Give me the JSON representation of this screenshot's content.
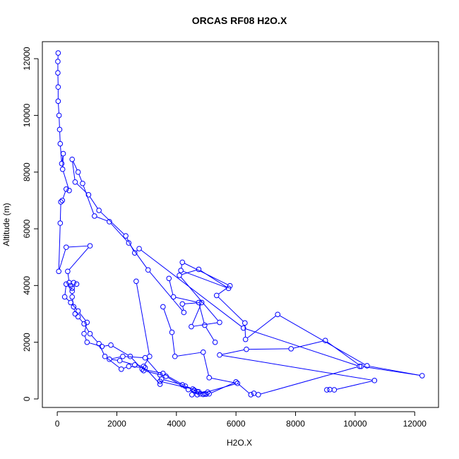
{
  "chart_data": {
    "type": "line",
    "title": "ORCAS RF08 H2O.X",
    "xlabel": "H2O.X",
    "ylabel": "Altitude (m)",
    "xlim": [
      -500,
      12800
    ],
    "ylim": [
      -300,
      12600
    ],
    "xticks": [
      0,
      2000,
      4000,
      6000,
      8000,
      10000,
      12000
    ],
    "yticks": [
      0,
      2000,
      4000,
      6000,
      8000,
      10000,
      12000
    ],
    "grid": false,
    "legend": "none",
    "color": "#0000ff",
    "series": [
      {
        "markers": "open-circle",
        "points": [
          [
            9050,
            320
          ],
          [
            9150,
            330
          ],
          [
            9300,
            320
          ],
          [
            10650,
            650
          ],
          [
            5450,
            1550
          ],
          [
            6350,
            1750
          ],
          [
            7850,
            1770
          ],
          [
            9000,
            2060
          ],
          [
            10200,
            1150
          ],
          [
            12250,
            820
          ],
          [
            10400,
            1170
          ],
          [
            7400,
            2980
          ],
          [
            6320,
            2100
          ],
          [
            6300,
            2680
          ],
          [
            5350,
            3650
          ],
          [
            5800,
            3990
          ],
          [
            4200,
            4820
          ],
          [
            4150,
            4530
          ],
          [
            5750,
            3900
          ],
          [
            4750,
            4570
          ],
          [
            4100,
            4360
          ],
          [
            5450,
            2700
          ],
          [
            4500,
            2550
          ],
          [
            4850,
            3400
          ],
          [
            4200,
            3350
          ],
          [
            4250,
            3050
          ],
          [
            3050,
            4550
          ],
          [
            2400,
            5500
          ],
          [
            1750,
            6250
          ],
          [
            1250,
            6450
          ],
          [
            850,
            7600
          ],
          [
            700,
            8000
          ],
          [
            500,
            8450
          ],
          [
            600,
            7650
          ],
          [
            1050,
            7200
          ],
          [
            1400,
            6650
          ],
          [
            2300,
            5750
          ],
          [
            2600,
            5150
          ],
          [
            2750,
            5300
          ],
          [
            6250,
            2500
          ],
          [
            10150,
            1150
          ],
          [
            6750,
            150
          ],
          [
            6600,
            200
          ],
          [
            6500,
            150
          ],
          [
            6000,
            600
          ],
          [
            5100,
            180
          ],
          [
            5000,
            170
          ],
          [
            4900,
            160
          ],
          [
            4800,
            180
          ],
          [
            4700,
            260
          ],
          [
            4600,
            310
          ],
          [
            4520,
            150
          ],
          [
            4550,
            350
          ],
          [
            3450,
            620
          ],
          [
            3450,
            520
          ],
          [
            2950,
            1100
          ],
          [
            2400,
            1150
          ],
          [
            2150,
            1050
          ],
          [
            1600,
            1500
          ],
          [
            1400,
            1950
          ],
          [
            1100,
            2300
          ],
          [
            900,
            2650
          ],
          [
            700,
            2900
          ],
          [
            600,
            3000
          ],
          [
            550,
            3250
          ],
          [
            500,
            3600
          ],
          [
            500,
            3800
          ],
          [
            450,
            4000
          ],
          [
            550,
            4100
          ],
          [
            400,
            4100
          ],
          [
            350,
            4500
          ],
          [
            1100,
            5400
          ],
          [
            300,
            5350
          ],
          [
            50,
            4500
          ],
          [
            100,
            6200
          ],
          [
            120,
            6950
          ],
          [
            170,
            7000
          ],
          [
            300,
            7400
          ],
          [
            400,
            7350
          ],
          [
            180,
            8100
          ],
          [
            200,
            8650
          ],
          [
            150,
            8300
          ],
          [
            100,
            9000
          ],
          [
            80,
            9500
          ],
          [
            60,
            10000
          ],
          [
            30,
            10500
          ],
          [
            30,
            11000
          ],
          [
            20,
            11500
          ],
          [
            20,
            11900
          ],
          [
            30,
            12200
          ]
        ]
      },
      {
        "markers": "open-circle",
        "points": [
          [
            2650,
            4150
          ],
          [
            3100,
            1500
          ],
          [
            2900,
            1150
          ],
          [
            2600,
            1200
          ],
          [
            2100,
            1350
          ],
          [
            1750,
            1400
          ],
          [
            2200,
            1500
          ],
          [
            2950,
            1450
          ],
          [
            3450,
            850
          ],
          [
            3500,
            700
          ],
          [
            4200,
            500
          ],
          [
            4600,
            300
          ],
          [
            4950,
            180
          ],
          [
            5050,
            240
          ],
          [
            4750,
            250
          ],
          [
            4300,
            450
          ],
          [
            3550,
            900
          ],
          [
            2850,
            1050
          ],
          [
            2450,
            1500
          ],
          [
            1800,
            1900
          ],
          [
            1500,
            1850
          ],
          [
            1000,
            2000
          ],
          [
            900,
            2300
          ],
          [
            1000,
            2700
          ],
          [
            700,
            3100
          ],
          [
            450,
            3400
          ],
          [
            250,
            3600
          ],
          [
            300,
            4050
          ],
          [
            500,
            3900
          ],
          [
            650,
            4050
          ]
        ]
      },
      {
        "markers": "open-circle",
        "points": [
          [
            3550,
            3250
          ],
          [
            3850,
            2350
          ],
          [
            3950,
            1500
          ],
          [
            4900,
            1650
          ],
          [
            5100,
            750
          ],
          [
            6050,
            550
          ],
          [
            4700,
            150
          ],
          [
            4400,
            330
          ],
          [
            3650,
            800
          ],
          [
            2900,
            1000
          ]
        ]
      },
      {
        "markers": "open-circle",
        "points": [
          [
            3750,
            4250
          ],
          [
            3900,
            3600
          ],
          [
            4750,
            3400
          ],
          [
            4950,
            2600
          ],
          [
            5300,
            2000
          ]
        ]
      }
    ]
  }
}
